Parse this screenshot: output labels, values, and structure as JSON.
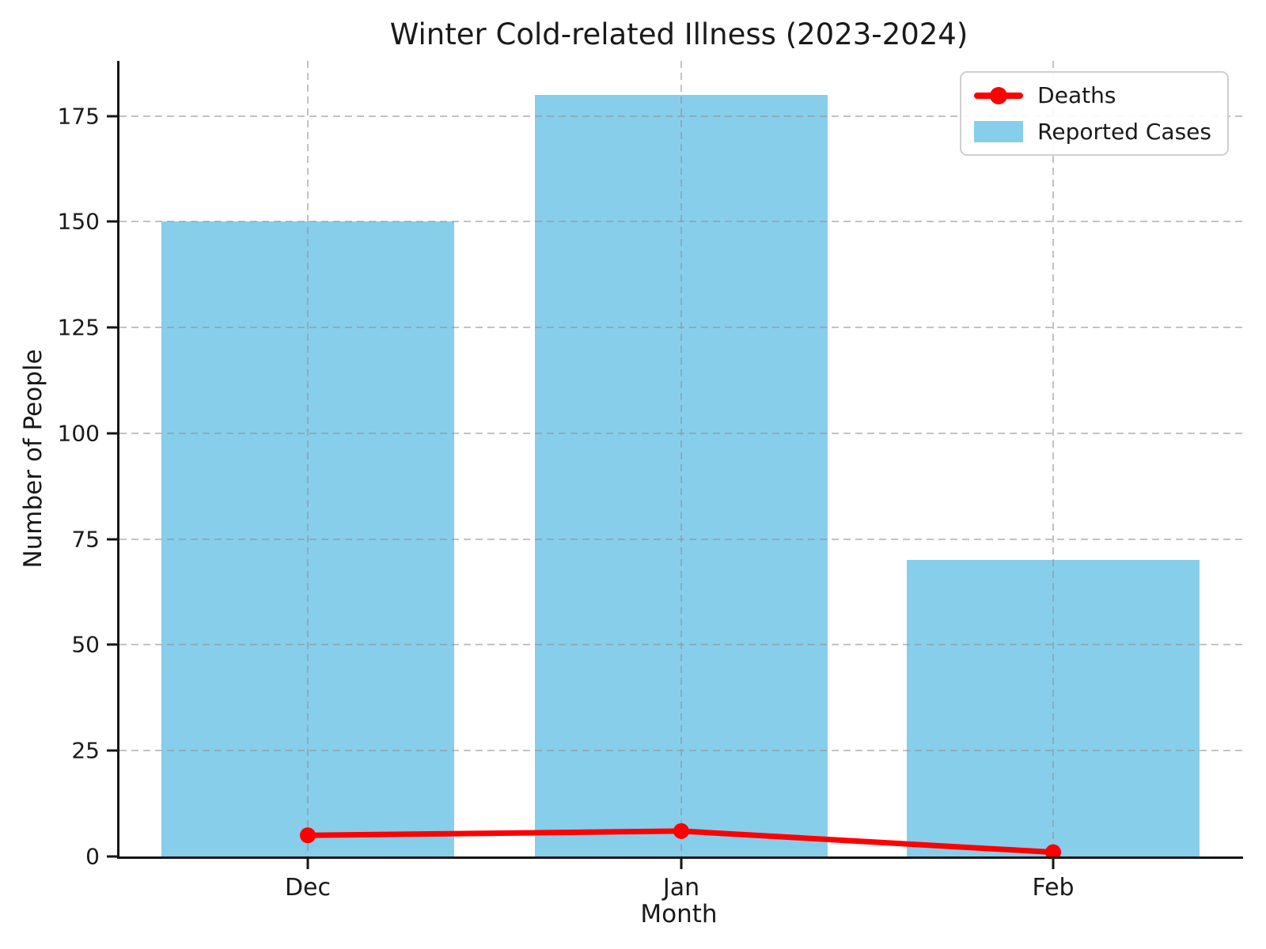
{
  "chart_data": {
    "type": "bar",
    "title": "Winter Cold-related Illness (2023-2024)",
    "xlabel": "Month",
    "ylabel": "Number of People",
    "categories": [
      "Dec",
      "Jan",
      "Feb"
    ],
    "series": [
      {
        "name": "Reported Cases",
        "kind": "bar",
        "color": "#87CEEB",
        "values": [
          150,
          180,
          70
        ]
      },
      {
        "name": "Deaths",
        "kind": "line",
        "color": "#FF0000",
        "values": [
          5,
          6,
          1
        ],
        "marker": "circle"
      }
    ],
    "yticks": [
      0,
      25,
      50,
      75,
      100,
      125,
      150,
      175
    ],
    "ylim": [
      0,
      188
    ],
    "grid": "dashed",
    "grid_over_bars": true,
    "legend_position": "upper right",
    "legend_order": [
      "Deaths",
      "Reported Cases"
    ]
  },
  "colors": {
    "background": "#ffffff",
    "bar": "#87CEEB",
    "line": "#FF0000",
    "text": "#1a1a1a",
    "spine": "#151515",
    "grid": "#c4c4c4",
    "legend_border": "#cfcfcf"
  }
}
